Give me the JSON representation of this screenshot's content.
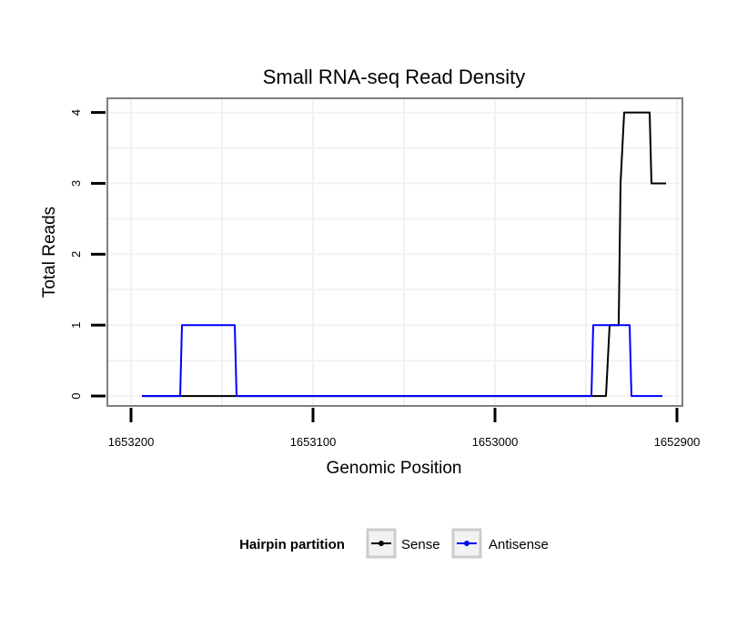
{
  "chart_data": {
    "type": "line",
    "title": "Small RNA-seq Read Density",
    "xlabel": "Genomic Position",
    "ylabel": "Total Reads",
    "xlim": [
      1653213,
      1652897
    ],
    "ylim": [
      -0.14,
      4.2
    ],
    "x_reversed": true,
    "xticks": [
      1653200,
      1653100,
      1653000,
      1652900
    ],
    "xtick_labels": [
      "1653200",
      "1653100",
      "1653000",
      "1652900"
    ],
    "yticks": [
      0,
      1,
      2,
      3,
      4
    ],
    "ytick_labels": [
      "0",
      "1",
      "2",
      "3",
      "4"
    ],
    "grid": true,
    "legend": {
      "title": "Hairpin partition",
      "position": "bottom",
      "items": [
        {
          "label": "Sense",
          "color": "#000000"
        },
        {
          "label": "Antisense",
          "color": "#0000ff"
        }
      ]
    },
    "series": [
      {
        "name": "Sense",
        "color": "#000000",
        "x": [
          1653194,
          1652939,
          1652937,
          1652932,
          1652931,
          1652929,
          1652915,
          1652914,
          1652906
        ],
        "y": [
          0,
          0,
          1,
          1,
          3,
          4,
          4,
          3,
          3
        ]
      },
      {
        "name": "Antisense",
        "color": "#0000ff",
        "x": [
          1653194,
          1653173,
          1653172,
          1653143,
          1653142,
          1652947,
          1652946,
          1652926,
          1652925,
          1652908
        ],
        "y": [
          0,
          0,
          1,
          1,
          0,
          0,
          1,
          1,
          0,
          0
        ]
      }
    ]
  }
}
